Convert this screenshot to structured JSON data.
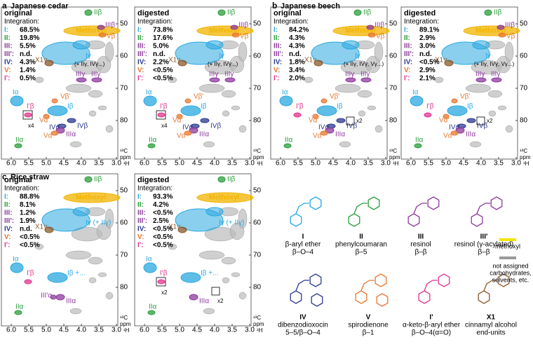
{
  "panels": [
    {
      "letter": "a",
      "title": "Japanese cedar",
      "spectra": [
        {
          "heading": "original",
          "integration": {
            "title": "Integration:",
            "rows": [
              {
                "label": "I:",
                "value": "68.5%"
              },
              {
                "label": "II:",
                "value": "19.8%"
              },
              {
                "label": "III:",
                "value": "5.5%"
              },
              {
                "label": "III':",
                "value": "n.d."
              },
              {
                "label": "IV:",
                "value": "4.3%"
              },
              {
                "label": "V:",
                "value": "1.4%"
              },
              {
                "label": "I':",
                "value": "0.5%"
              }
            ]
          },
          "labels": {
            "methoxyl": "Methoxyl",
            "II_beta": "IIβ",
            "III_beta": "IIIβ",
            "V_beta": "Vβ",
            "I_gamma": "Iγ",
            "X1_gamma": "X1γ",
            "gamma_note": "(+ IIγ, IVγ...)",
            "III_gamma_1": "IIIγ",
            "III_gamma_2": "IIIγ",
            "I_alpha": "Iα",
            "Ip_beta": "I'β",
            "scale_1": "x4",
            "Vp_beta": "Vβ'",
            "I_beta": "Iβ",
            "Vp_alpha": "Vα'",
            "IV_alpha": "IVα",
            "IV_beta": "IVβ",
            "III_alpha": "IIIα",
            "V_alpha": "Vα",
            "II_alpha": "IIα"
          }
        },
        {
          "heading": "digested",
          "integration": {
            "title": "Integration:",
            "rows": [
              {
                "label": "I:",
                "value": "73.8%"
              },
              {
                "label": "II:",
                "value": "17.6%"
              },
              {
                "label": "III:",
                "value": "5.0%"
              },
              {
                "label": "III':",
                "value": "n.d."
              },
              {
                "label": "IV:",
                "value": "2.2%"
              },
              {
                "label": "V:",
                "value": "<0.5%"
              },
              {
                "label": "I':",
                "value": "<0.5%"
              }
            ]
          },
          "labels": {
            "methoxyl": "Methoxyl",
            "II_beta": "IIβ",
            "III_beta": "IIIβ",
            "V_beta": "Vβ",
            "I_gamma": "Iγ",
            "X1_gamma": "X1γ",
            "gamma_note": "(+ IIγ, IVγ...)",
            "III_gamma_1": "IIIγ",
            "III_gamma_2": "IIIγ",
            "I_alpha": "Iα",
            "Ip_beta": "I'β",
            "scale_1": "x4",
            "Vp_beta": "Vβ'",
            "I_beta": "Iβ",
            "Vp_alpha": "Vα'",
            "IV_alpha": "IVα",
            "IV_beta": "IVβ",
            "III_alpha": "IIIα",
            "V_alpha": "Vα",
            "II_alpha": "IIα"
          }
        }
      ]
    },
    {
      "letter": "b",
      "title": "Japanese beech",
      "spectra": [
        {
          "heading": "original",
          "integration": {
            "title": "Integration:",
            "rows": [
              {
                "label": "I:",
                "value": "84.2%"
              },
              {
                "label": "II:",
                "value": "4.3%"
              },
              {
                "label": "III:",
                "value": "4.3%"
              },
              {
                "label": "III':",
                "value": "n.d."
              },
              {
                "label": "IV:",
                "value": "1.8%"
              },
              {
                "label": "V:",
                "value": "3.4%"
              },
              {
                "label": "I':",
                "value": "2.0%"
              }
            ]
          },
          "labels": {
            "methoxyl": "Methoxyl",
            "II_beta": "IIβ",
            "III_beta": "IIIβ",
            "V_beta": "Vβ",
            "I_gamma": "Iγ",
            "X1_gamma": "X1γ",
            "gamma_note": "(+ IIγ, IVγ, Vγ...)",
            "III_gamma_1": "IIIγ",
            "III_gamma_2": "IIIγ",
            "I_alpha": "Iα",
            "Ip_beta": "I'β",
            "Vp_beta": "Vβ'",
            "I_beta": "Iβ",
            "Vp_alpha": "Vα'",
            "IV_alpha": "IVα",
            "IV_beta": "IVβ",
            "scale_2": "x2",
            "III_alpha": "IIIα",
            "V_alpha": "Vα",
            "II_alpha": "IIα"
          }
        },
        {
          "heading": "digested",
          "integration": {
            "title": "Integration:",
            "rows": [
              {
                "label": "I:",
                "value": "89.1%"
              },
              {
                "label": "II:",
                "value": "2.9%"
              },
              {
                "label": "III:",
                "value": "3.0%"
              },
              {
                "label": "III':",
                "value": "n.d."
              },
              {
                "label": "IV:",
                "value": "<0.5%"
              },
              {
                "label": "V:",
                "value": "2.9%"
              },
              {
                "label": "I':",
                "value": "2.1%"
              }
            ]
          },
          "labels": {
            "methoxyl": "Methoxyl",
            "II_beta": "IIβ",
            "III_beta": "IIIβ",
            "V_beta": "Vβ",
            "I_gamma": "Iγ",
            "X1_gamma": "X1γ",
            "gamma_note": "(+ IIγ, IVγ, Vγ...)",
            "III_gamma_1": "IIIγ",
            "III_gamma_2": "IIIγ",
            "I_alpha": "Iα",
            "Ip_beta": "I'β",
            "Vp_beta": "Vβ'",
            "I_beta": "Iβ",
            "Vp_alpha": "Vα'",
            "IV_alpha": "IVα",
            "IV_beta": "IVβ",
            "scale_2": "x2",
            "III_alpha": "IIIα",
            "V_alpha": "Vα",
            "II_alpha": "IIα"
          }
        }
      ]
    },
    {
      "letter": "c",
      "title": "Rice straw",
      "spectra": [
        {
          "heading": "original",
          "integration": {
            "title": "Integration:",
            "rows": [
              {
                "label": "I:",
                "value": "88.8%"
              },
              {
                "label": "II:",
                "value": "8.1%"
              },
              {
                "label": "III:",
                "value": "1.2%"
              },
              {
                "label": "III':",
                "value": "1.9%"
              },
              {
                "label": "IV:",
                "value": "n.d."
              },
              {
                "label": "V:",
                "value": "<0.5%"
              },
              {
                "label": "I':",
                "value": "<0.5%"
              }
            ]
          },
          "labels": {
            "methoxyl": "Methoxyl",
            "II_beta": "IIβ",
            "X1_gamma": "X1γ",
            "I_gamma": "Iγ (+ IIγ)",
            "I_alpha": "Iα",
            "Ip_beta": "I'β",
            "I_beta": "Iβ +...",
            "IIIp_alpha": "III'α",
            "III_alpha": "IIIα",
            "II_alpha": "IIα"
          }
        },
        {
          "heading": "digested",
          "integration": {
            "title": "Integration:",
            "rows": [
              {
                "label": "I:",
                "value": "93.3%"
              },
              {
                "label": "II:",
                "value": "4.2%"
              },
              {
                "label": "III:",
                "value": "<0.5%"
              },
              {
                "label": "III':",
                "value": "2.5%"
              },
              {
                "label": "IV:",
                "value": "<0.5%"
              },
              {
                "label": "V:",
                "value": "<0.5%"
              },
              {
                "label": "I':",
                "value": "<0.5%"
              }
            ]
          },
          "labels": {
            "methoxyl": "Methoxyl",
            "II_beta": "IIβ",
            "X1_gamma": "X1γ",
            "I_gamma": "Iγ (+ IIγ)",
            "I_alpha": "Iα",
            "Ip_beta": "I'β",
            "scale_1": "x2",
            "I_beta": "Iβ +...",
            "III_alpha": "IIIα",
            "scale_3": "x2",
            "II_alpha": "IIα"
          }
        }
      ]
    }
  ],
  "axis": {
    "x_ticks": [
      "6.0",
      "5.5",
      "5.0",
      "4.5",
      "4.0",
      "3.5",
      "3.0"
    ],
    "y_ticks": [
      "50",
      "60",
      "70",
      "80"
    ],
    "x_nucleus": "¹H",
    "y_nucleus": "¹³C",
    "unit": "ppm"
  },
  "legend": {
    "items": [
      {
        "numeral": "I",
        "lines": [
          "β-aryl ether",
          "β–O–4"
        ]
      },
      {
        "numeral": "II",
        "lines": [
          "phenylcoumaran",
          "β–5"
        ]
      },
      {
        "numeral": "III",
        "lines": [
          "resinol",
          "β–β"
        ]
      },
      {
        "numeral": "III'",
        "lines": [
          "resinol (γ-acylated)",
          "β–β"
        ]
      },
      {
        "numeral": "IV",
        "lines": [
          "dibenzodioxocin",
          "5–5/β–O–4"
        ]
      },
      {
        "numeral": "V",
        "lines": [
          "spirodienone",
          "β–1"
        ]
      },
      {
        "numeral": "I'",
        "lines": [
          "α-keto-β-aryl ether",
          "β–O–4(α=O)"
        ]
      },
      {
        "numeral": "X1",
        "lines": [
          "cinnamyl alcohol",
          "end-units"
        ]
      }
    ],
    "methoxyl": "methoxyl",
    "not_assigned": [
      "not assigned",
      "carbohydrates,",
      "solvents, etc."
    ]
  }
}
